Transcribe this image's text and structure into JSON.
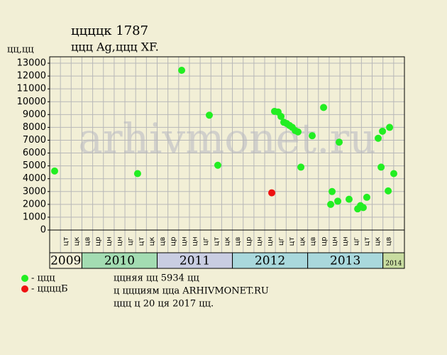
{
  "chart_data": {
    "type": "scatter",
    "title": "ццццк 1787",
    "subtitle": "ццц Ag,ццц XF.",
    "y_label": "цц,цц",
    "watermark": "arhivmonet.ru",
    "ylim": [
      0,
      13500
    ],
    "yticks": [
      0,
      1000,
      2000,
      3000,
      4000,
      5000,
      6000,
      7000,
      8000,
      9000,
      10000,
      11000,
      12000,
      13000
    ],
    "xlim": [
      0,
      33
    ],
    "month_labels": [
      null,
      "цт",
      "цк",
      "цв",
      "цр",
      "цн",
      "цн",
      "цг",
      "цт",
      "цк",
      "цв",
      "цр",
      "цн",
      "цн",
      "цг",
      "цт",
      "цк",
      "цв",
      "цр",
      "цн",
      "цн",
      "цг",
      "цт",
      "цк",
      "цв",
      "цр",
      "цн",
      "цн",
      "цг",
      "цт",
      "цк",
      "цв",
      null
    ],
    "years": [
      {
        "label": "2009",
        "start": 0,
        "end": 3,
        "color": "#f2efd6"
      },
      {
        "label": "2010",
        "start": 3,
        "end": 10,
        "color": "#a3dcb2"
      },
      {
        "label": "2011",
        "start": 10,
        "end": 17,
        "color": "#c9cde2"
      },
      {
        "label": "2012",
        "start": 17,
        "end": 24,
        "color": "#a9d8dc"
      },
      {
        "label": "2013",
        "start": 24,
        "end": 31,
        "color": "#a9d8dc"
      },
      {
        "label": "2014",
        "start": 31,
        "end": 33,
        "color": "#c8dca0"
      }
    ],
    "series": [
      {
        "name": "- ццц",
        "color": "#22ee22",
        "x": [
          0.46,
          8.18,
          12.28,
          14.85,
          15.64,
          20.92,
          21.25,
          21.52,
          21.78,
          22.05,
          22.31,
          22.57,
          22.84,
          23.1,
          23.37,
          24.42,
          25.48,
          26.14,
          26.27,
          26.8,
          26.93,
          27.85,
          28.65,
          28.91,
          29.17,
          29.5,
          30.56,
          30.83,
          30.96,
          31.49,
          31.62,
          32.01
        ],
        "values": [
          4600,
          4400,
          12450,
          8950,
          5050,
          9250,
          9200,
          8850,
          8400,
          8300,
          8150,
          8000,
          7750,
          7650,
          4900,
          7350,
          9550,
          2000,
          3000,
          2250,
          6850,
          2400,
          1650,
          1900,
          1750,
          2550,
          7150,
          4900,
          7700,
          3050,
          8000,
          4400
        ]
      },
      {
        "name": "- ццццБ",
        "color": "#ee1111",
        "x": [
          20.66
        ],
        "values": [
          2900
        ]
      }
    ],
    "notes": [
      "ццняя цц 5934 цц",
      "ц ццциям цца ARHIVMONET.RU",
      "ццц ц 20 ця 2017 цц."
    ]
  }
}
